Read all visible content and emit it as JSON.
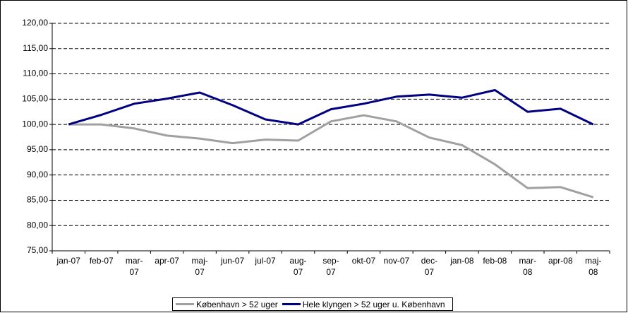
{
  "chart_data": {
    "type": "line",
    "categories": [
      "jan-07",
      "feb-07",
      "mar-\n07",
      "apr-07",
      "maj-\n07",
      "jun-07",
      "jul-07",
      "aug-\n07",
      "sep-\n07",
      "okt-07",
      "nov-07",
      "dec-\n07",
      "jan-08",
      "feb-08",
      "mar-\n08",
      "apr-08",
      "maj-\n08"
    ],
    "series": [
      {
        "name": "København > 52 uger",
        "color": "#a0a0a0",
        "values": [
          100,
          100,
          99.2,
          97.8,
          97.2,
          96.3,
          97.0,
          96.8,
          100.6,
          101.8,
          100.6,
          97.4,
          95.9,
          92.1,
          87.4,
          87.6,
          85.6
        ]
      },
      {
        "name": "Hele klyngen > 52 uger u. København",
        "color": "#000080",
        "values": [
          100,
          101.9,
          104.1,
          105.1,
          106.3,
          103.8,
          101.0,
          100.0,
          103.0,
          104.1,
          105.5,
          105.9,
          105.3,
          106.8,
          102.5,
          103.1,
          100.0
        ]
      }
    ],
    "ylim": [
      75,
      120
    ],
    "yticks": [
      {
        "value": 75,
        "label": "75,00"
      },
      {
        "value": 80,
        "label": "80,00"
      },
      {
        "value": 85,
        "label": "85,00"
      },
      {
        "value": 90,
        "label": "90,00"
      },
      {
        "value": 95,
        "label": "95,00"
      },
      {
        "value": 100,
        "label": "100,00"
      },
      {
        "value": 105,
        "label": "105,00"
      },
      {
        "value": 110,
        "label": "110,00"
      },
      {
        "value": 115,
        "label": "115,00"
      },
      {
        "value": 120,
        "label": "120,00"
      }
    ],
    "grid": true,
    "legend": "bottom"
  }
}
